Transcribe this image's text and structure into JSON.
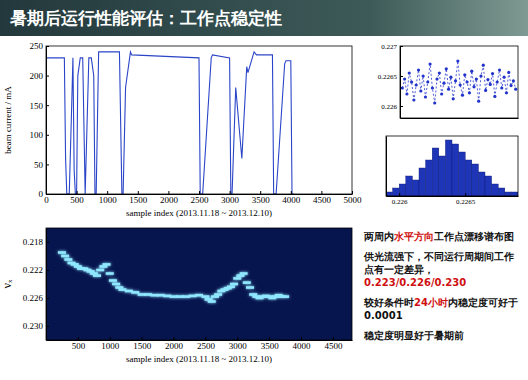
{
  "title": "暑期后运行性能评估：工作点稳定性",
  "chart_data": [
    {
      "type": "line",
      "x": [
        0,
        300,
        320,
        340,
        380,
        420,
        440,
        460,
        480,
        500,
        520,
        560,
        600,
        640,
        700,
        740,
        780,
        800,
        820,
        860,
        900,
        1200,
        1240,
        1260,
        1300,
        1380,
        1400,
        2500,
        2520,
        2560,
        2700,
        2720,
        3000,
        3020,
        3040,
        3100,
        3200,
        3280,
        3300,
        3400,
        3440,
        3700,
        3720,
        3760,
        3900,
        3920,
        4000,
        4020,
        4050
      ],
      "values": [
        230,
        230,
        60,
        0,
        0,
        150,
        230,
        40,
        0,
        0,
        200,
        230,
        230,
        0,
        230,
        230,
        200,
        0,
        0,
        240,
        240,
        240,
        0,
        0,
        180,
        240,
        235,
        230,
        0,
        0,
        230,
        235,
        230,
        0,
        0,
        180,
        60,
        215,
        205,
        240,
        235,
        235,
        0,
        0,
        220,
        225,
        225,
        0,
        0
      ],
      "xlim": [
        0,
        5000
      ],
      "xticks": [
        0,
        500,
        1000,
        1500,
        2000,
        2500,
        3000,
        3500,
        4000,
        4500,
        5000
      ],
      "ylim": [
        0,
        250
      ],
      "yticks": [
        0,
        50,
        100,
        150,
        200,
        250
      ],
      "x_label": "sample index (2013.11.18 ~ 2013.12.10)",
      "y_label": "beam current / mA",
      "color": "#2b45c8",
      "grid": false
    },
    {
      "type": "line",
      "marker": "circle",
      "line_style": "dashed",
      "x": [
        1,
        2,
        3,
        4,
        5,
        6,
        7,
        8,
        9,
        10,
        11,
        12,
        13,
        14,
        15,
        16,
        17,
        18,
        19,
        20,
        21,
        22,
        23,
        24,
        25,
        26,
        27,
        28,
        29,
        30,
        31,
        32,
        33,
        34,
        35,
        36,
        37,
        38,
        39,
        40,
        41,
        42,
        43,
        44,
        45,
        46,
        47,
        48,
        49,
        50
      ],
      "values": [
        0.2263,
        0.22645,
        0.2262,
        0.22655,
        0.2264,
        0.2261,
        0.22635,
        0.2266,
        0.22625,
        0.2265,
        0.22615,
        0.2264,
        0.2267,
        0.2263,
        0.22605,
        0.22645,
        0.22655,
        0.2262,
        0.22638,
        0.22662,
        0.22628,
        0.22648,
        0.22612,
        0.22642,
        0.22675,
        0.22635,
        0.22618,
        0.22652,
        0.2264,
        0.22622,
        0.22658,
        0.22632,
        0.22645,
        0.22608,
        0.2265,
        0.22668,
        0.22626,
        0.22644,
        0.22636,
        0.22654,
        0.22616,
        0.2264,
        0.2266,
        0.2263,
        0.22648,
        0.22622,
        0.22656,
        0.22634,
        0.22642,
        0.22628
      ],
      "xlim": [
        0,
        51
      ],
      "ylim": [
        0.2258,
        0.227
      ],
      "yticks": [
        0.226,
        0.2265,
        0.227
      ],
      "tick_labels": "y",
      "color": "#2233cc",
      "grid": false
    },
    {
      "type": "histogram",
      "bins": [
        0.2259,
        0.22595,
        0.226,
        0.22605,
        0.2261,
        0.22615,
        0.2262,
        0.22625,
        0.2263,
        0.22635,
        0.2264,
        0.22645,
        0.2265,
        0.22655,
        0.2266,
        0.22665,
        0.2267,
        0.22675,
        0.2268,
        0.22685,
        0.2269
      ],
      "counts": [
        1,
        2,
        3,
        5,
        4,
        7,
        9,
        12,
        10,
        14,
        13,
        11,
        9,
        8,
        6,
        5,
        3,
        2,
        1,
        1
      ],
      "xlim": [
        0.2259,
        0.2269
      ],
      "xticks": [
        0.226,
        0.2265
      ],
      "ylim": [
        0,
        15
      ],
      "tick_labels": "x",
      "color": "#1f35b8",
      "grid": false
    },
    {
      "type": "scatter",
      "marker": "dash",
      "x": [
        250,
        300,
        350,
        400,
        450,
        500,
        550,
        600,
        650,
        700,
        750,
        800,
        850,
        900,
        950,
        1000,
        1050,
        1100,
        1150,
        1200,
        1300,
        1400,
        1500,
        1600,
        1700,
        1800,
        1900,
        2000,
        2100,
        2200,
        2300,
        2400,
        2500,
        2550,
        2600,
        2650,
        2700,
        2750,
        2800,
        2850,
        2900,
        2950,
        3000,
        3050,
        3100,
        3150,
        3200,
        3250,
        3300,
        3350,
        3400,
        3450,
        3500,
        3550,
        3600,
        3650,
        3700,
        3750
      ],
      "values": [
        0.2195,
        0.22,
        0.2205,
        0.221,
        0.2212,
        0.2215,
        0.2218,
        0.2218,
        0.222,
        0.2222,
        0.2225,
        0.2228,
        0.222,
        0.2215,
        0.2212,
        0.2225,
        0.2235,
        0.224,
        0.2245,
        0.2248,
        0.225,
        0.2252,
        0.2255,
        0.2255,
        0.2256,
        0.2256,
        0.2257,
        0.2258,
        0.2258,
        0.2258,
        0.2257,
        0.2256,
        0.2258,
        0.2262,
        0.2265,
        0.2258,
        0.2255,
        0.225,
        0.2248,
        0.2246,
        0.2244,
        0.224,
        0.2232,
        0.2228,
        0.2225,
        0.2238,
        0.2245,
        0.2255,
        0.2258,
        0.226,
        0.2258,
        0.2257,
        0.2258,
        0.226,
        0.2258,
        0.2256,
        0.2258,
        0.2258
      ],
      "xlim": [
        0,
        4800
      ],
      "xticks": [
        500,
        1000,
        1500,
        2000,
        2500,
        3000,
        3500,
        4000,
        4500
      ],
      "ylim": [
        0.232,
        0.216
      ],
      "yticks": [
        0.218,
        0.222,
        0.226,
        {
          "value": 0.23,
          "label": "0.230"
        }
      ],
      "x_label": "sample index (2013.11.18 ~ 2013.12.10)",
      "y_label": "νₓ",
      "color": "#8fe8ff",
      "grid": false
    }
  ],
  "notes": [
    [
      {
        "text": "两周内",
        "color": "#111111"
      },
      {
        "text": "水平方向",
        "color": "#d01010"
      },
      {
        "text": "工作点漂移谱布图",
        "color": "#111111"
      }
    ],
    [
      {
        "text": "供光流强下，不同运行周期间工作点有一定差异，",
        "color": "#111111"
      },
      {
        "text": "0.223/0.226/0.230",
        "color": "#d01010"
      }
    ],
    [
      {
        "text": "较好条件时",
        "color": "#111111"
      },
      {
        "text": "24小时",
        "color": "#d01010"
      },
      {
        "text": "内稳定度可好于0.0001",
        "color": "#111111"
      }
    ],
    [
      {
        "text": "稳定度明显好于暑期前",
        "color": "#111111"
      }
    ]
  ]
}
